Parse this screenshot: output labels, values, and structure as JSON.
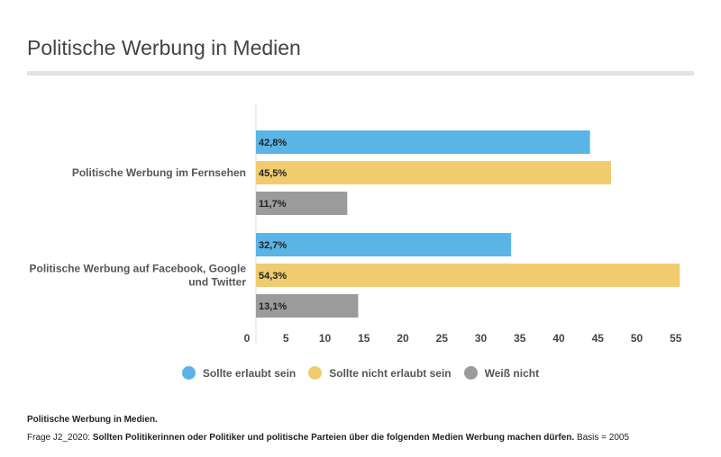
{
  "chart_data": {
    "type": "bar",
    "orientation": "horizontal",
    "title": "Politische Werbung in Medien",
    "categories": [
      "Politische Werbung im Fernsehen",
      "Politische Werbung auf Facebook, Google und Twitter"
    ],
    "category_lines": [
      [
        "Politische Werbung im Fernsehen"
      ],
      [
        "Politische Werbung auf Facebook, Google",
        "und Twitter"
      ]
    ],
    "series": [
      {
        "name": "Sollte erlaubt sein",
        "color": "#5ab4e5",
        "values": [
          42.8,
          32.7
        ],
        "labels": [
          "42,8%",
          "32,7%"
        ]
      },
      {
        "name": "Sollte nicht erlaubt sein",
        "color": "#f0cc6e",
        "values": [
          45.5,
          54.3
        ],
        "labels": [
          "45,5%",
          "54,3%"
        ]
      },
      {
        "name": "Weiß nicht",
        "color": "#9b9b9b",
        "values": [
          11.7,
          13.1
        ],
        "labels": [
          "11,7%",
          "13,1%"
        ]
      }
    ],
    "xticks": [
      0,
      5,
      10,
      15,
      20,
      25,
      30,
      35,
      40,
      45,
      50,
      55
    ],
    "xlim": [
      0,
      55
    ],
    "legend": "bottom",
    "grid": false
  },
  "footer": {
    "note_title": "Politische Werbung in Medien.",
    "question_prefix": "Frage J2_2020: ",
    "question": "Sollten Politikerinnen oder Politiker und politische Parteien über die folgenden Medien Werbung machen dürfen.",
    "basis": " Basis = 2005"
  }
}
